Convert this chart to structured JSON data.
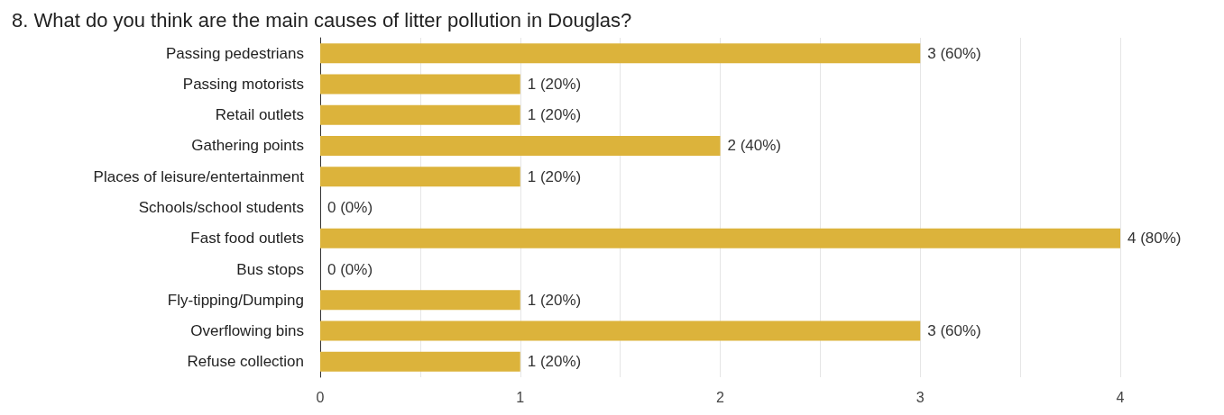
{
  "chart_data": {
    "type": "bar",
    "orientation": "horizontal",
    "title": "8. What do you think are the main causes of litter pollution in Douglas?",
    "categories": [
      "Passing pedestrians",
      "Passing motorists",
      "Retail outlets",
      "Gathering points",
      "Places of leisure/entertainment",
      "Schools/school students",
      "Fast food outlets",
      "Bus stops",
      "Fly-tipping/Dumping",
      "Overflowing bins",
      "Refuse collection"
    ],
    "values": [
      3,
      1,
      1,
      2,
      1,
      0,
      4,
      0,
      1,
      3,
      1
    ],
    "value_labels": [
      "3 (60%)",
      "1 (20%)",
      "1 (20%)",
      "2 (40%)",
      "1 (20%)",
      "0 (0%)",
      "4 (80%)",
      "0 (0%)",
      "1 (20%)",
      "3 (60%)",
      "1 (20%)"
    ],
    "color": "#dcb33b",
    "xlim": [
      0,
      4
    ],
    "xticks": [
      0,
      {
        "value": 0.5,
        "label": null
      },
      1,
      {
        "value": 1.5,
        "label": null
      },
      2,
      {
        "value": 2.5,
        "label": null
      },
      3,
      {
        "value": 3.5,
        "label": null
      },
      4
    ],
    "grid": true
  }
}
